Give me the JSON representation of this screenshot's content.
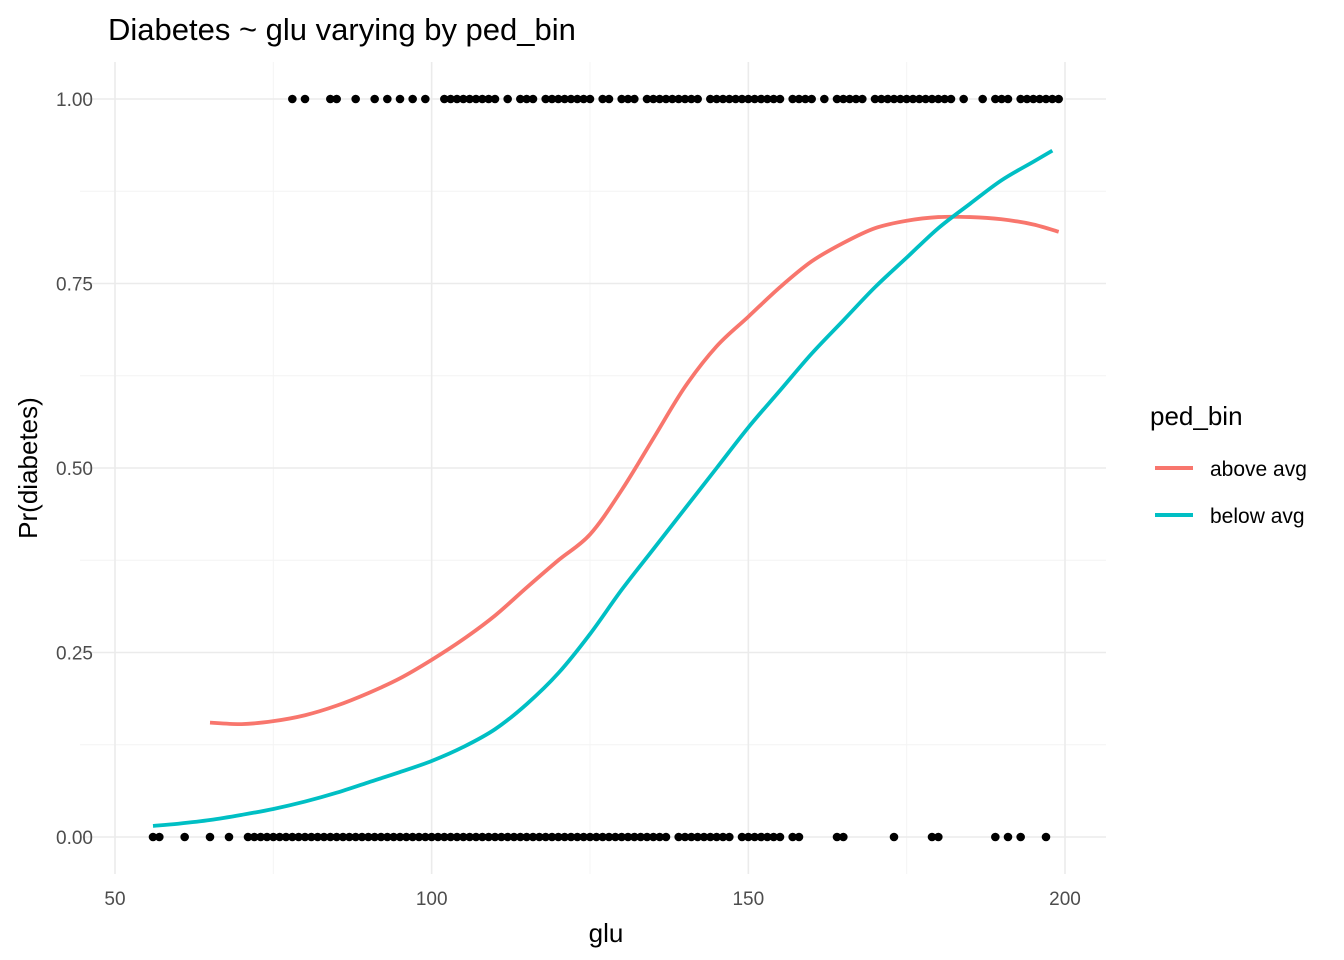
{
  "chart_data": {
    "type": "line",
    "title": "Diabetes ~ glu varying by ped_bin",
    "xlabel": "glu",
    "ylabel": "Pr(diabetes)",
    "xlim": [
      50,
      200
    ],
    "ylim": [
      0,
      1
    ],
    "x_ticks": [
      50,
      100,
      150,
      200
    ],
    "x_tick_labels": [
      "50",
      "100",
      "150",
      "200"
    ],
    "y_ticks": [
      0,
      0.25,
      0.5,
      0.75,
      1
    ],
    "y_tick_labels": [
      "0.00",
      "0.25",
      "0.50",
      "0.75",
      "1.00"
    ],
    "grid": true,
    "legend": {
      "title": "ped_bin",
      "placement": "right"
    },
    "series": [
      {
        "name": "above avg",
        "color": "#F8766D",
        "x": [
          65,
          70,
          75,
          80,
          85,
          90,
          95,
          100,
          105,
          110,
          115,
          120,
          125,
          130,
          135,
          140,
          145,
          150,
          155,
          160,
          165,
          170,
          175,
          180,
          185,
          190,
          195,
          199
        ],
        "y": [
          0.155,
          0.153,
          0.157,
          0.165,
          0.178,
          0.195,
          0.215,
          0.24,
          0.268,
          0.3,
          0.338,
          0.375,
          0.41,
          0.47,
          0.54,
          0.61,
          0.665,
          0.705,
          0.745,
          0.78,
          0.805,
          0.825,
          0.835,
          0.84,
          0.84,
          0.837,
          0.83,
          0.82
        ]
      },
      {
        "name": "below avg",
        "color": "#00BFC4",
        "x": [
          56,
          60,
          65,
          70,
          75,
          80,
          85,
          90,
          95,
          100,
          105,
          110,
          115,
          120,
          125,
          130,
          135,
          140,
          145,
          150,
          155,
          160,
          165,
          170,
          175,
          180,
          185,
          190,
          195,
          198
        ],
        "y": [
          0.015,
          0.018,
          0.023,
          0.03,
          0.038,
          0.048,
          0.06,
          0.074,
          0.088,
          0.103,
          0.122,
          0.146,
          0.18,
          0.222,
          0.275,
          0.335,
          0.39,
          0.445,
          0.5,
          0.555,
          0.605,
          0.655,
          0.7,
          0.745,
          0.785,
          0.825,
          0.858,
          0.89,
          0.915,
          0.93
        ]
      }
    ],
    "points": {
      "color": "#000000",
      "y1_x": [
        78,
        80,
        84,
        85,
        88,
        91,
        93,
        95,
        97,
        99,
        102,
        103,
        104,
        105,
        106,
        107,
        108,
        109,
        110,
        112,
        114,
        115,
        116,
        118,
        119,
        120,
        121,
        122,
        123,
        124,
        125,
        127,
        128,
        130,
        131,
        132,
        134,
        135,
        136,
        137,
        138,
        139,
        140,
        141,
        142,
        144,
        145,
        146,
        147,
        148,
        149,
        150,
        151,
        152,
        153,
        154,
        155,
        157,
        158,
        159,
        160,
        162,
        164,
        165,
        166,
        167,
        168,
        170,
        171,
        172,
        173,
        174,
        175,
        176,
        177,
        178,
        179,
        180,
        181,
        182,
        184,
        187,
        189,
        190,
        191,
        193,
        194,
        195,
        196,
        197,
        198,
        199
      ],
      "y0_x": [
        56,
        57,
        61,
        65,
        68,
        71,
        72,
        73,
        74,
        75,
        76,
        77,
        78,
        79,
        80,
        81,
        82,
        83,
        84,
        85,
        86,
        87,
        88,
        89,
        90,
        91,
        92,
        93,
        94,
        95,
        96,
        97,
        98,
        99,
        100,
        101,
        102,
        103,
        104,
        105,
        106,
        107,
        108,
        109,
        110,
        111,
        112,
        113,
        114,
        115,
        116,
        117,
        118,
        119,
        120,
        121,
        122,
        123,
        124,
        125,
        126,
        127,
        128,
        129,
        130,
        131,
        132,
        133,
        134,
        135,
        136,
        137,
        139,
        140,
        141,
        142,
        143,
        144,
        145,
        146,
        147,
        149,
        150,
        151,
        152,
        153,
        154,
        155,
        157,
        158,
        164,
        165,
        173,
        179,
        180,
        189,
        191,
        193,
        197
      ]
    }
  }
}
